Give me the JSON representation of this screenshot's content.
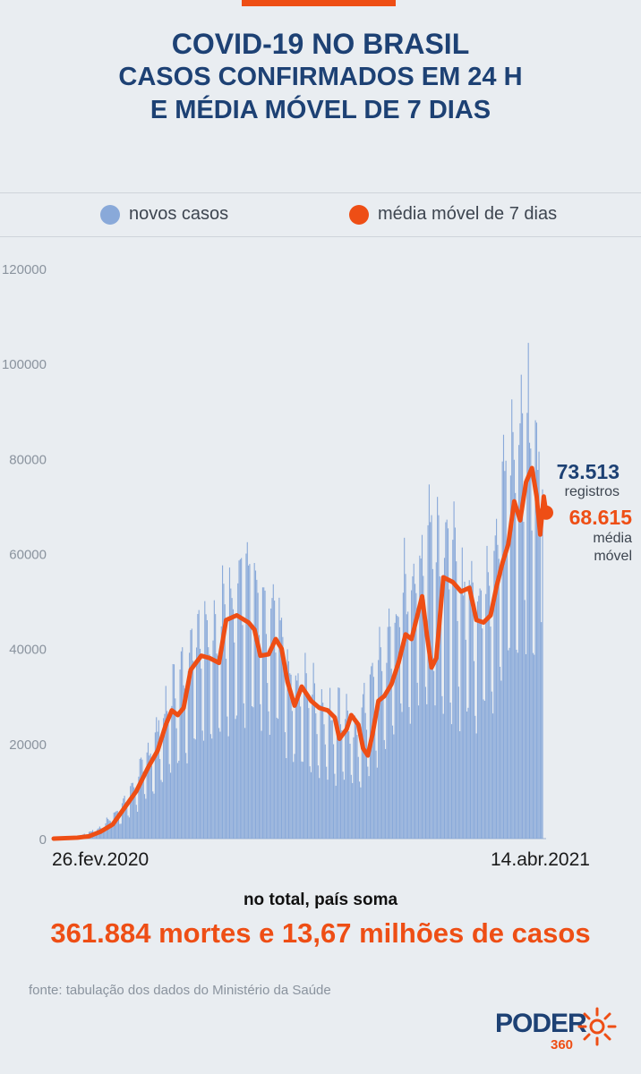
{
  "title": {
    "line1": "COVID-19 NO BRASIL",
    "line2": "CASOS CONFIRMADOS EM 24 H",
    "line3": "E MÉDIA MÓVEL DE 7 DIAS"
  },
  "colors": {
    "bars": "#89a9d9",
    "line": "#ee4e15",
    "title": "#1d4174",
    "accent": "#ee4e15"
  },
  "chart_data": {
    "type": "bar",
    "x_start_label": "26.fev.2020",
    "x_end_label": "14.abr.2021",
    "ylim": [
      0,
      120000
    ],
    "y_ticks": [
      "0",
      "20000",
      "40000",
      "60000",
      "80000",
      "100000",
      "120000"
    ],
    "grid": false,
    "legend_position": "top",
    "series": [
      {
        "name": "novos casos",
        "type": "bar",
        "anchors_day_value": [
          [
            0,
            0
          ],
          [
            20,
            300
          ],
          [
            40,
            2000
          ],
          [
            60,
            6500
          ],
          [
            75,
            13000
          ],
          [
            90,
            20000
          ],
          [
            100,
            26000
          ],
          [
            110,
            30000
          ],
          [
            120,
            38000
          ],
          [
            130,
            40000
          ],
          [
            140,
            38000
          ],
          [
            150,
            45000
          ],
          [
            160,
            47000
          ],
          [
            170,
            45000
          ],
          [
            180,
            38000
          ],
          [
            190,
            42000
          ],
          [
            200,
            30000
          ],
          [
            210,
            28000
          ],
          [
            220,
            26000
          ],
          [
            235,
            22000
          ],
          [
            245,
            24000
          ],
          [
            255,
            18000
          ],
          [
            265,
            25000
          ],
          [
            280,
            33000
          ],
          [
            295,
            44000
          ],
          [
            310,
            50000
          ],
          [
            320,
            58000
          ],
          [
            330,
            53000
          ],
          [
            345,
            46000
          ],
          [
            360,
            44000
          ],
          [
            375,
            55000
          ],
          [
            385,
            68000
          ],
          [
            395,
            72000
          ],
          [
            400,
            78000
          ],
          [
            405,
            72000
          ],
          [
            410,
            70000
          ],
          [
            414,
            73513
          ]
        ]
      },
      {
        "name": "média móvel de 7 dias",
        "type": "line",
        "points_day_value": [
          [
            0,
            0
          ],
          [
            20,
            200
          ],
          [
            30,
            500
          ],
          [
            40,
            1500
          ],
          [
            50,
            3000
          ],
          [
            60,
            6500
          ],
          [
            70,
            10000
          ],
          [
            80,
            15000
          ],
          [
            88,
            18500
          ],
          [
            95,
            24000
          ],
          [
            100,
            27000
          ],
          [
            105,
            26000
          ],
          [
            110,
            27500
          ],
          [
            116,
            35500
          ],
          [
            125,
            38500
          ],
          [
            132,
            38000
          ],
          [
            140,
            37000
          ],
          [
            146,
            46000
          ],
          [
            155,
            47000
          ],
          [
            165,
            45500
          ],
          [
            170,
            44000
          ],
          [
            175,
            38500
          ],
          [
            182,
            38800
          ],
          [
            188,
            42000
          ],
          [
            193,
            40000
          ],
          [
            198,
            33000
          ],
          [
            204,
            28000
          ],
          [
            210,
            32000
          ],
          [
            218,
            29000
          ],
          [
            225,
            27500
          ],
          [
            232,
            27000
          ],
          [
            238,
            25500
          ],
          [
            242,
            21000
          ],
          [
            248,
            23000
          ],
          [
            252,
            26000
          ],
          [
            258,
            24000
          ],
          [
            262,
            19000
          ],
          [
            266,
            17500
          ],
          [
            270,
            22000
          ],
          [
            275,
            29000
          ],
          [
            280,
            30000
          ],
          [
            286,
            32500
          ],
          [
            292,
            37000
          ],
          [
            298,
            43000
          ],
          [
            303,
            42000
          ],
          [
            308,
            47000
          ],
          [
            312,
            51000
          ],
          [
            316,
            43000
          ],
          [
            320,
            36000
          ],
          [
            324,
            38000
          ],
          [
            330,
            55000
          ],
          [
            338,
            54000
          ],
          [
            345,
            52000
          ],
          [
            352,
            52800
          ],
          [
            358,
            46000
          ],
          [
            364,
            45500
          ],
          [
            370,
            47000
          ],
          [
            375,
            53000
          ],
          [
            380,
            58000
          ],
          [
            385,
            62000
          ],
          [
            390,
            71000
          ],
          [
            395,
            67000
          ],
          [
            400,
            75000
          ],
          [
            405,
            78000
          ],
          [
            409,
            72000
          ],
          [
            412,
            64000
          ],
          [
            415,
            72000
          ],
          [
            417,
            68615
          ]
        ]
      }
    ],
    "annotations": {
      "last_registros": "73.513",
      "last_registros_label": "registros",
      "last_media": "68.615",
      "last_media_label_1": "média",
      "last_media_label_2": "móvel"
    }
  },
  "legend": {
    "bars_label": "novos casos",
    "line_label": "média móvel de 7 dias"
  },
  "totals": {
    "intro": "no total, país soma",
    "main": "361.884 mortes e 13,67 milhões de casos"
  },
  "source": "fonte: tabulação dos dados do Ministério da Saúde",
  "logo": {
    "word": "PODER",
    "number": "360"
  }
}
